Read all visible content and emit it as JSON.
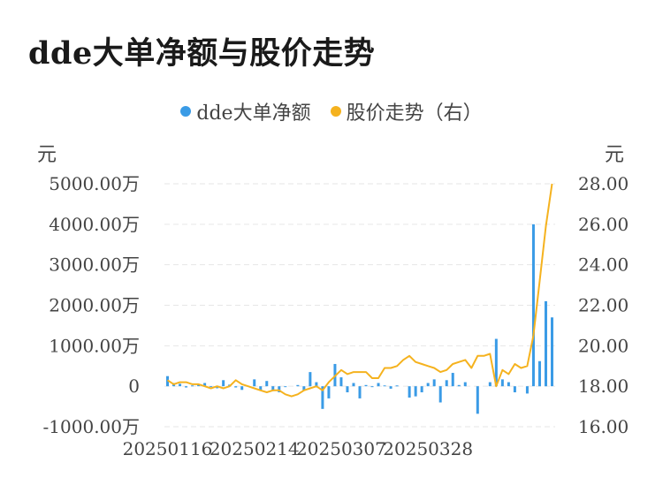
{
  "title": "dde大单净额与股价走势",
  "units": {
    "left": "元",
    "right": "元"
  },
  "colors": {
    "bar": "#3a9be6",
    "line": "#f5b21e",
    "grid": "#e6e6e6"
  },
  "chart_data": {
    "type": "bar+line",
    "legend_position": "top-center",
    "grid": true,
    "series": [
      {
        "name": "dde大单净额",
        "type": "bar",
        "axis": "left",
        "values": [
          250,
          80,
          60,
          -30,
          20,
          50,
          80,
          -20,
          -50,
          150,
          40,
          -30,
          -90,
          0,
          170,
          -100,
          130,
          -120,
          -150,
          -20,
          0,
          30,
          -100,
          350,
          100,
          -560,
          -300,
          550,
          220,
          -150,
          80,
          -300,
          30,
          -20,
          80,
          20,
          -60,
          20,
          0,
          -280,
          -250,
          -150,
          80,
          170,
          -400,
          150,
          330,
          30,
          100,
          0,
          -680,
          0,
          100,
          1170,
          170,
          100,
          -150,
          0,
          -180,
          4000,
          620,
          2100,
          1700
        ]
      },
      {
        "name": "股价走势（右）",
        "type": "line",
        "axis": "right",
        "values": [
          18.3,
          18.1,
          18.2,
          18.2,
          18.1,
          18.1,
          18.0,
          17.9,
          18.0,
          17.9,
          18.0,
          18.3,
          18.1,
          18.0,
          17.9,
          17.8,
          17.7,
          17.8,
          17.8,
          17.6,
          17.5,
          17.6,
          17.8,
          17.9,
          18.0,
          17.8,
          18.2,
          18.5,
          18.8,
          18.6,
          18.7,
          18.7,
          18.7,
          18.4,
          18.4,
          18.9,
          18.9,
          19.0,
          19.3,
          19.5,
          19.2,
          19.1,
          19.0,
          18.9,
          18.7,
          18.8,
          19.1,
          19.2,
          19.3,
          18.9,
          19.5,
          19.5,
          19.6,
          18.0,
          18.8,
          18.6,
          19.1,
          18.9,
          19.0,
          20.5,
          23.2,
          25.9,
          28.0
        ]
      }
    ],
    "x_tick_labels": [
      "20250116",
      "20250214",
      "20250307",
      "20250328"
    ],
    "x_tick_indices": [
      0,
      14,
      28,
      42
    ],
    "y_left": {
      "min": -1000,
      "max": 5000,
      "step": 1000,
      "tick_labels": [
        "-1000.00万",
        "0",
        "1000.00万",
        "2000.00万",
        "3000.00万",
        "4000.00万",
        "5000.00万"
      ]
    },
    "y_right": {
      "min": 16,
      "max": 28,
      "step": 2,
      "tick_labels": [
        "16.00",
        "18.00",
        "20.00",
        "22.00",
        "24.00",
        "26.00",
        "28.00"
      ]
    }
  }
}
